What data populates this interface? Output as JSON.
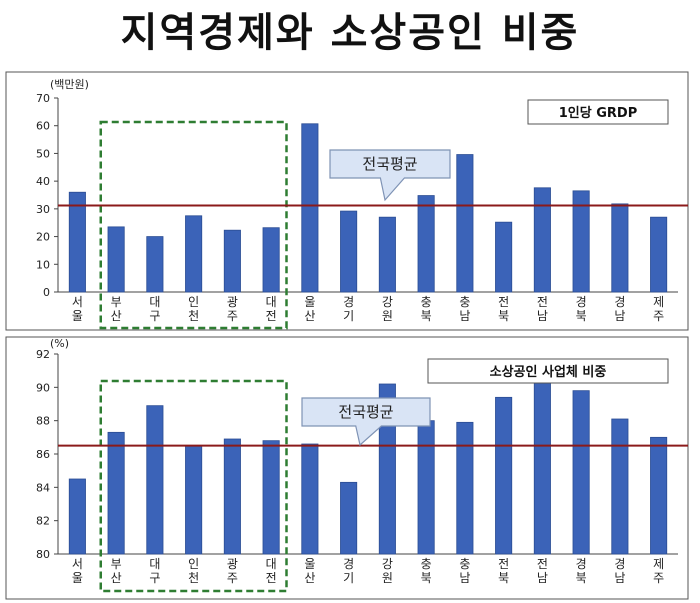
{
  "page": {
    "title": "지역경제와 소상공인 비중"
  },
  "colors": {
    "bar": "#3b63b8",
    "reference_line": "#8b1a1a",
    "highlight_box": "#2e7d32",
    "callout_bg": "#d9e4f5",
    "callout_border": "#7f93b5"
  },
  "chart_data": [
    {
      "type": "bar",
      "title": "1인당 GRDP",
      "unit_label": "(백만원)",
      "categories": [
        "서울",
        "부산",
        "대구",
        "인천",
        "광주",
        "대전",
        "울산",
        "경기",
        "강원",
        "충북",
        "충남",
        "전북",
        "전남",
        "경북",
        "경남",
        "제주"
      ],
      "values": [
        36,
        23.5,
        20,
        27.5,
        22.3,
        23.2,
        60.7,
        29.2,
        27,
        34.8,
        49.6,
        25.2,
        37.6,
        36.5,
        31.8,
        27
      ],
      "ylim": [
        0,
        70
      ],
      "yticks": [
        0,
        10,
        20,
        30,
        40,
        50,
        60,
        70
      ],
      "reference": {
        "label": "전국평균",
        "value": 31.2
      },
      "highlight": {
        "from": "부산",
        "to": "대전"
      },
      "grid": false
    },
    {
      "type": "bar",
      "title": "소상공인 사업체 비중",
      "unit_label": "(%)",
      "categories": [
        "서울",
        "부산",
        "대구",
        "인천",
        "광주",
        "대전",
        "울산",
        "경기",
        "강원",
        "충북",
        "충남",
        "전북",
        "전남",
        "경북",
        "경남",
        "제주"
      ],
      "values": [
        84.5,
        87.3,
        88.9,
        86.5,
        86.9,
        86.8,
        86.6,
        84.3,
        90.2,
        88.0,
        87.9,
        89.4,
        90.3,
        89.8,
        88.1,
        87.0
      ],
      "ylim": [
        80,
        92
      ],
      "yticks": [
        80,
        82,
        84,
        86,
        88,
        90,
        92
      ],
      "reference": {
        "label": "전국평균",
        "value": 86.5
      },
      "highlight": {
        "from": "부산",
        "to": "대전"
      },
      "grid": false
    }
  ]
}
